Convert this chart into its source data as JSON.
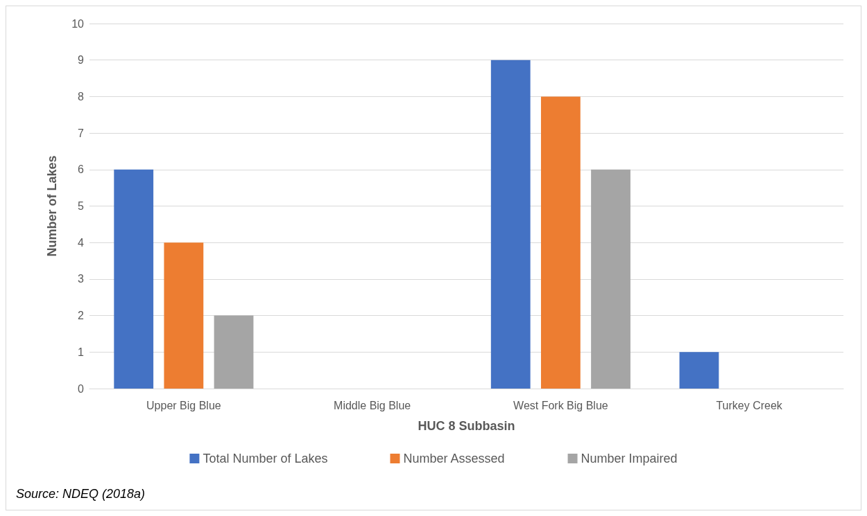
{
  "chart_data": {
    "type": "bar",
    "xlabel": "HUC 8 Subbasin",
    "ylabel": "Number of Lakes",
    "categories": [
      "Upper Big Blue",
      "Middle Big Blue",
      "West Fork Big Blue",
      "Turkey Creek"
    ],
    "series": [
      {
        "name": "Total Number of Lakes",
        "color": "#4472c4",
        "values": [
          6,
          0,
          9,
          1
        ]
      },
      {
        "name": "Number Assessed",
        "color": "#ed7d31",
        "values": [
          4,
          0,
          8,
          0
        ]
      },
      {
        "name": "Number Impaired",
        "color": "#a5a5a5",
        "values": [
          2,
          0,
          6,
          0
        ]
      }
    ],
    "ylim": [
      0,
      10
    ],
    "yticks": [
      0,
      1,
      2,
      3,
      4,
      5,
      6,
      7,
      8,
      9,
      10
    ],
    "grid": "y",
    "legend": "bottom",
    "annotations": [
      "Source: NDEQ (2018a)"
    ]
  }
}
